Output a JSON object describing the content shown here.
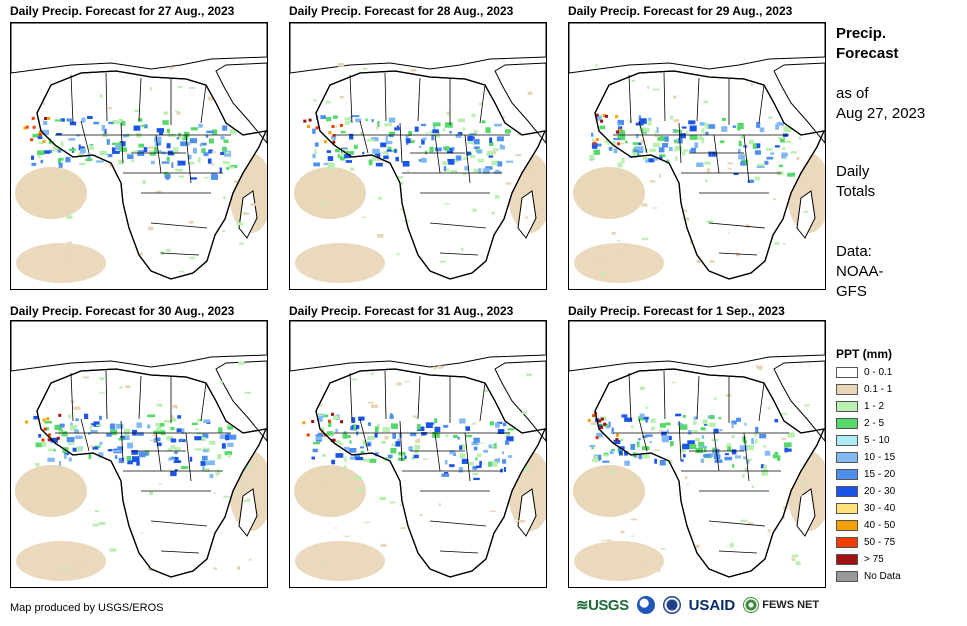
{
  "panels": [
    {
      "title": "Daily Precip. Forecast for 27 Aug., 2023"
    },
    {
      "title": "Daily Precip. Forecast for 28 Aug., 2023"
    },
    {
      "title": "Daily Precip. Forecast for 29 Aug., 2023"
    },
    {
      "title": "Daily Precip. Forecast for 30 Aug., 2023"
    },
    {
      "title": "Daily Precip. Forecast for 31 Aug., 2023"
    },
    {
      "title": "Daily Precip. Forecast for 1 Sep., 2023"
    }
  ],
  "sidebar": {
    "heading_line1": "Precip.",
    "heading_line2": "Forecast",
    "asof_line1": "as of",
    "asof_line2": "Aug 27, 2023",
    "totals_line1": "Daily",
    "totals_line2": "Totals",
    "data_line1": "Data:",
    "data_line2": "NOAA-",
    "data_line3": "GFS"
  },
  "legend": {
    "title": "PPT (mm)",
    "items": [
      {
        "label": "0 - 0.1",
        "color": "#ffffff"
      },
      {
        "label": "0.1 - 1",
        "color": "#e8d5b5"
      },
      {
        "label": "1 - 2",
        "color": "#b9f0b0"
      },
      {
        "label": "2 - 5",
        "color": "#56d96a"
      },
      {
        "label": "5 - 10",
        "color": "#aeeaf5"
      },
      {
        "label": "10 - 15",
        "color": "#82b9f5"
      },
      {
        "label": "15 - 20",
        "color": "#4f8ff0"
      },
      {
        "label": "20 - 30",
        "color": "#1b55e8"
      },
      {
        "label": "30 - 40",
        "color": "#ffe27a"
      },
      {
        "label": "40 - 50",
        "color": "#f5a000"
      },
      {
        "label": "50 - 75",
        "color": "#f03c00"
      },
      {
        "label": "> 75",
        "color": "#a01010"
      },
      {
        "label": "No Data",
        "color": "#999999"
      }
    ]
  },
  "footer": {
    "credit": "Map produced by USGS/EROS",
    "logo_usgs": "≋USGS",
    "logo_usaid": "USAID",
    "logo_fews": "FEWS NET"
  }
}
